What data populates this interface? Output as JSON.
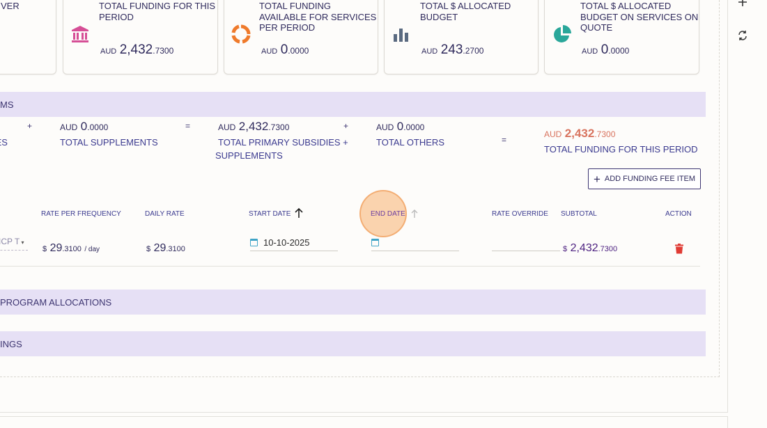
{
  "right_toolbar": {
    "add_icon": "plus",
    "refresh_icon": "sync"
  },
  "cards": [
    {
      "label_line1": "VER",
      "label_line2": ""
    },
    {
      "label_line1": "TOTAL FUNDING FOR THIS",
      "label_line2": "PERIOD",
      "label_line3": "",
      "currency": "AUD",
      "int": "2,432",
      "dec": ".7300",
      "icon": "bank-icon",
      "icon_color": "#d64f96"
    },
    {
      "label_line1": "TOTAL FUNDING",
      "label_line2": "AVAILABLE FOR SERVICES",
      "label_line3": "PER PERIOD",
      "currency": "AUD",
      "int": "0",
      "dec": ".0000",
      "icon": "donut-icon",
      "icon_color": "#ef7a2b"
    },
    {
      "label_line1": "TOTAL $ ALLOCATED",
      "label_line2": "BUDGET",
      "label_line3": "",
      "currency": "AUD",
      "int": "243",
      "dec": ".2700",
      "icon": "bar-chart-icon",
      "icon_color": "#5a6a80"
    },
    {
      "label_line1": "TOTAL $ ALLOCATED",
      "label_line2": "BUDGET ON SERVICES ON",
      "label_line3": "QUOTE",
      "currency": "AUD",
      "int": "0",
      "dec": ".0000",
      "icon": "pie-chart-icon",
      "icon_color": "#2aa79a"
    }
  ],
  "bands": {
    "items": "MS",
    "program_allocations": "PROGRAM ALLOCATIONS",
    "settings": "INGS"
  },
  "summary": {
    "partial_label": "IES",
    "plus1": "+",
    "supplements": {
      "currency": "AUD",
      "int": "0",
      "dec": ".0000",
      "label": "TOTAL SUPPLEMENTS"
    },
    "equals1": "=",
    "primary": {
      "currency": "AUD",
      "int": "2,432",
      "dec": ".7300",
      "label_line1": "TOTAL PRIMARY SUBSIDIES +",
      "label_line2": "SUPPLEMENTS"
    },
    "plus2": "+",
    "others": {
      "currency": "AUD",
      "int": "0",
      "dec": ".0000",
      "label": "TOTAL OTHERS"
    },
    "equals2": "=",
    "total": {
      "currency": "AUD",
      "int": "2,432",
      "dec": ".7300",
      "label": "TOTAL FUNDING FOR THIS PERIOD",
      "color": "#d8735e"
    }
  },
  "add_fee_button": {
    "label": "ADD FUNDING FEE ITEM"
  },
  "table": {
    "headers": {
      "rate_per_frequency": "RATE PER FREQUENCY",
      "daily_rate": "DAILY RATE",
      "start_date": "START DATE",
      "end_date": "END DATE",
      "rate_override": "RATE OVERRIDE",
      "subtotal": "SUBTOTAL",
      "action": "ACTION"
    },
    "row": {
      "type_partial": "ICP T",
      "rate_symbol": "$",
      "rate_int": "29",
      "rate_dec": ".3100",
      "rate_unit": "/ day",
      "daily_symbol": "$",
      "daily_int": "29",
      "daily_dec": ".3100",
      "start_date": "10-10-2025",
      "end_date": "",
      "rate_override": "",
      "subtotal_symbol": "$",
      "subtotal_int": "2,432",
      "subtotal_dec": ".7300"
    }
  }
}
